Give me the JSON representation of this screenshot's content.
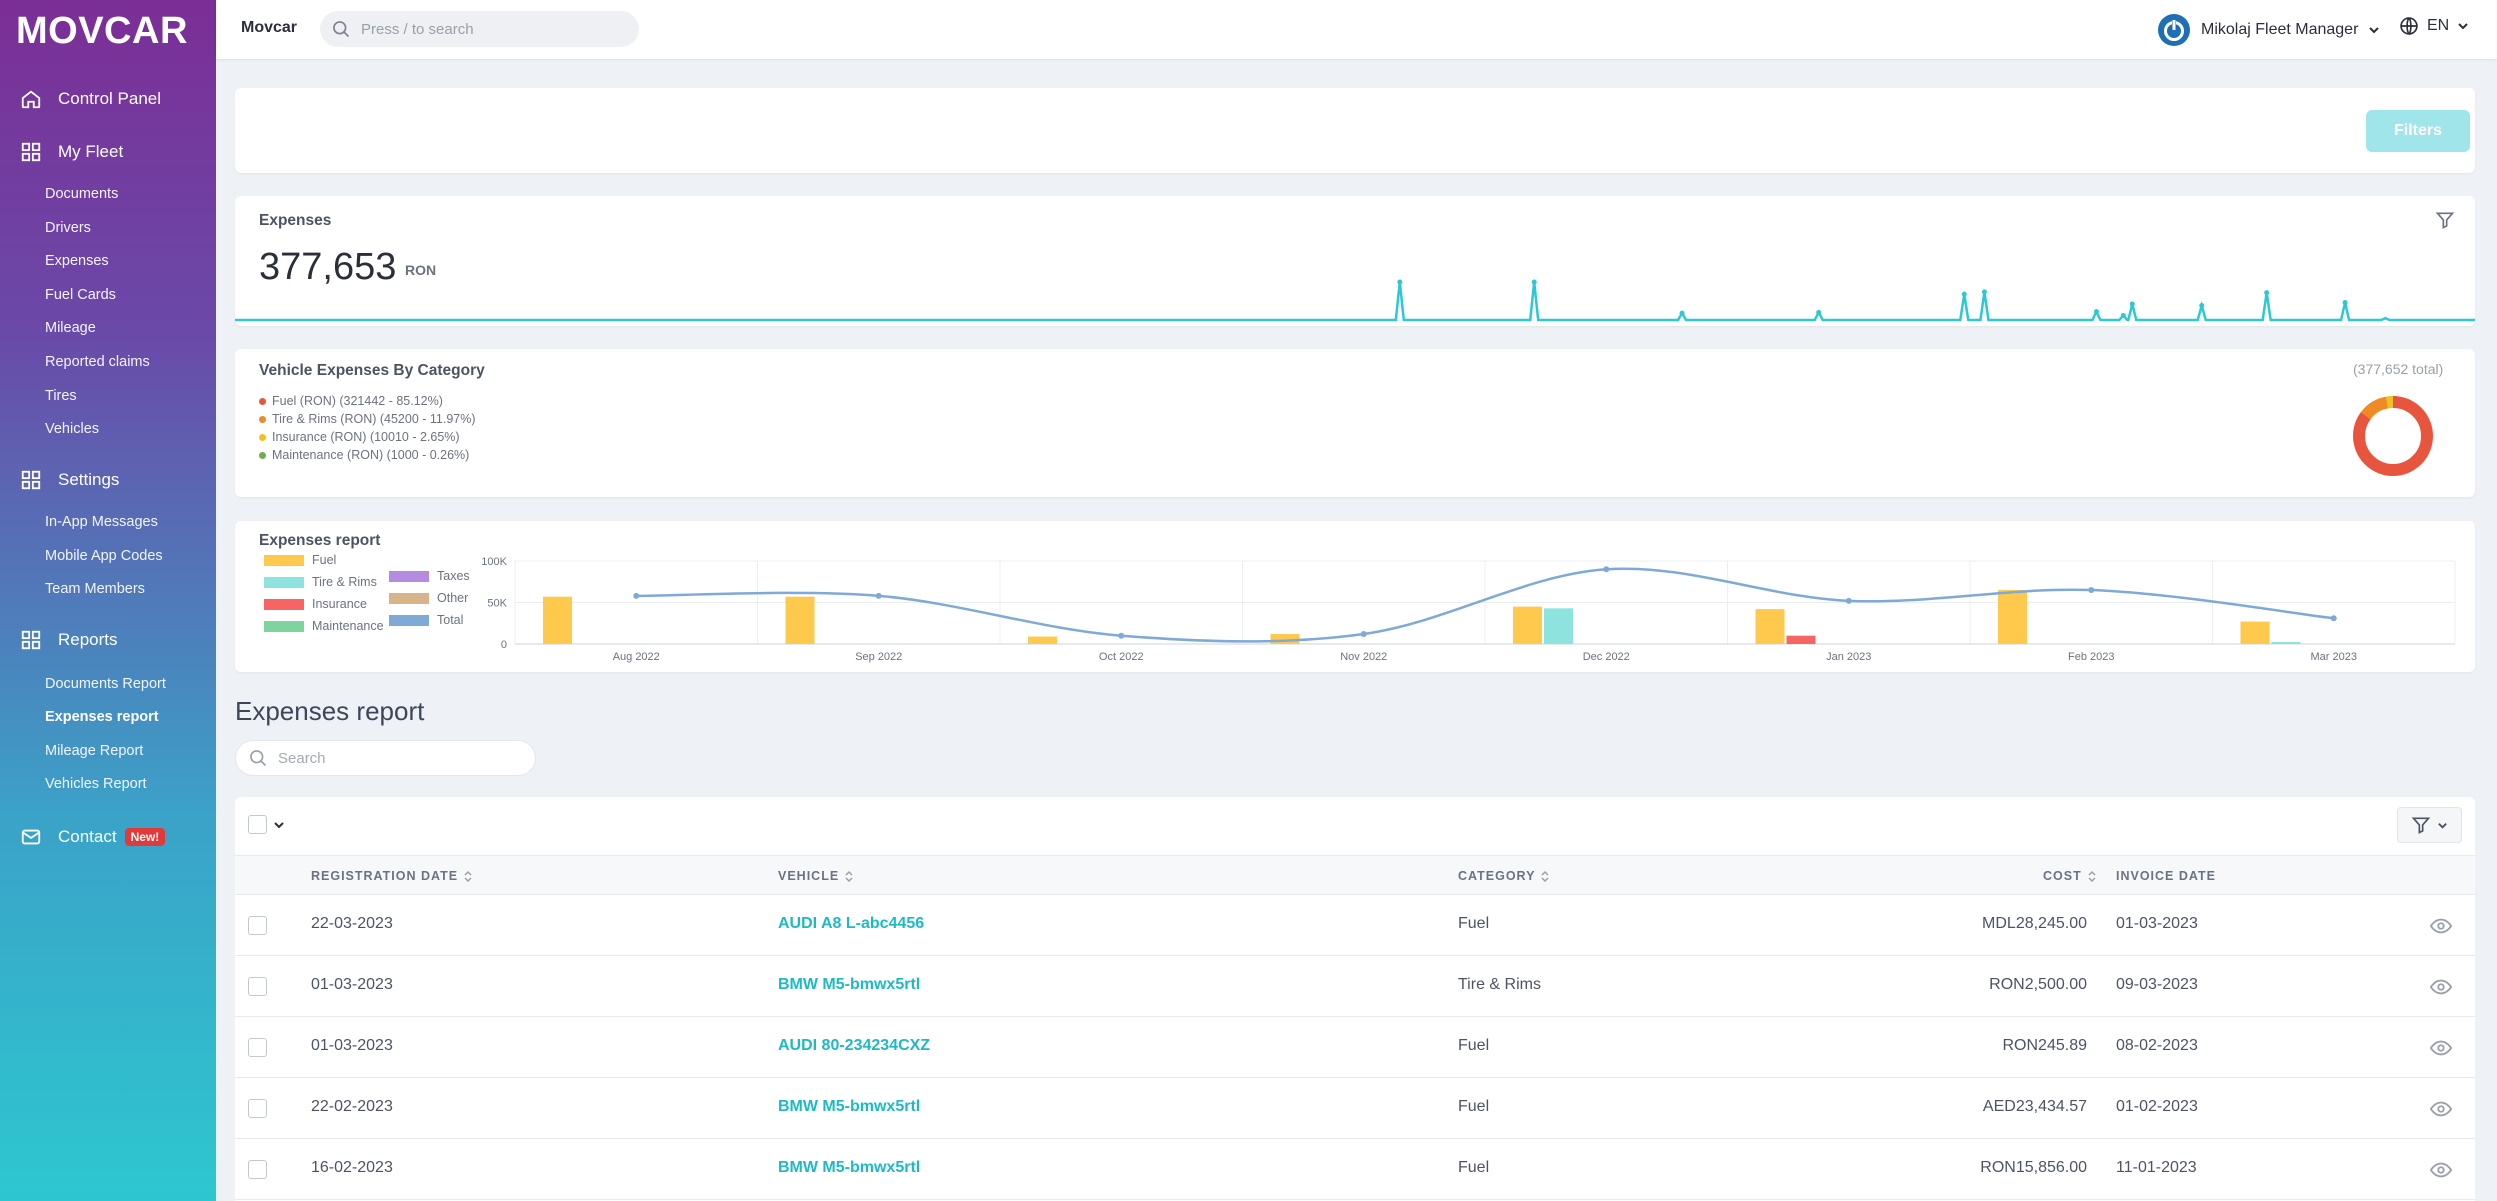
{
  "sidebar": {
    "logo": "MOVCAR",
    "sections": [
      {
        "label": "Control Panel",
        "icon": "home-icon"
      },
      {
        "label": "My Fleet",
        "icon": "grid-icon",
        "items": [
          "Documents",
          "Drivers",
          "Expenses",
          "Fuel Cards",
          "Mileage",
          "Reported claims",
          "Tires",
          "Vehicles"
        ]
      },
      {
        "label": "Settings",
        "icon": "grid-icon",
        "items": [
          "In-App Messages",
          "Mobile App Codes",
          "Team Members"
        ]
      },
      {
        "label": "Reports",
        "icon": "grid-icon",
        "items": [
          "Documents Report",
          "Expenses report",
          "Mileage Report",
          "Vehicles Report"
        ]
      },
      {
        "label": "Contact",
        "icon": "mail-icon",
        "badge": "New!"
      }
    ],
    "active_item": "Expenses report"
  },
  "header": {
    "brand": "Movcar",
    "search_placeholder": "Press / to search",
    "user": "Mikolaj Fleet Manager",
    "language": "EN"
  },
  "filters": {
    "button": "Filters"
  },
  "expenses_card": {
    "title": "Expenses",
    "total": "377,653",
    "currency": "RON"
  },
  "category_card": {
    "title": "Vehicle Expenses By Category",
    "total_note": "(377,652 total)",
    "items": [
      {
        "label": "Fuel (RON) (321442 - 85.12%)",
        "color": "#e8553e",
        "value": 321442
      },
      {
        "label": "Tire & Rims (RON) (45200 - 11.97%)",
        "color": "#f08a24",
        "value": 45200
      },
      {
        "label": "Insurance (RON) (10010 - 2.65%)",
        "color": "#f2c218",
        "value": 10010
      },
      {
        "label": "Maintenance (RON) (1000 - 0.26%)",
        "color": "#6ab04c",
        "value": 1000
      }
    ]
  },
  "report_card": {
    "title": "Expenses report",
    "legend": [
      {
        "label": "Fuel",
        "color": "#ffc94d"
      },
      {
        "label": "Tire & Rims",
        "color": "#8ee3de"
      },
      {
        "label": "Insurance",
        "color": "#f86464"
      },
      {
        "label": "Maintenance",
        "color": "#7fd49e"
      },
      {
        "label": "Taxes",
        "color": "#b58be0"
      },
      {
        "label": "Other",
        "color": "#d9b48a"
      },
      {
        "label": "Total",
        "color": "#7fa9d6"
      }
    ]
  },
  "chart_data": {
    "type": "bar",
    "title": "Expenses report",
    "categories": [
      "Aug 2022",
      "Sep 2022",
      "Oct 2022",
      "Nov 2022",
      "Dec 2022",
      "Jan 2023",
      "Feb 2023",
      "Mar 2023"
    ],
    "y_ticks": [
      "100K",
      "50K",
      "0"
    ],
    "ylim": [
      0,
      100000
    ],
    "series": [
      {
        "name": "Fuel",
        "values": [
          57000,
          57000,
          9000,
          12000,
          45000,
          42000,
          65000,
          27000
        ]
      },
      {
        "name": "Tire & Rims",
        "values": [
          0,
          0,
          0,
          0,
          43000,
          0,
          0,
          2500
        ]
      },
      {
        "name": "Insurance",
        "values": [
          0,
          0,
          0,
          0,
          0,
          10000,
          0,
          0
        ]
      },
      {
        "name": "Maintenance",
        "values": [
          0,
          0,
          0,
          0,
          0,
          0,
          0,
          0
        ]
      },
      {
        "name": "Taxes",
        "values": [
          0,
          0,
          0,
          0,
          0,
          0,
          0,
          0
        ]
      },
      {
        "name": "Other",
        "values": [
          0,
          0,
          0,
          0,
          0,
          0,
          0,
          0
        ]
      },
      {
        "name": "Total",
        "values": [
          58000,
          58000,
          10000,
          12000,
          90000,
          52000,
          65000,
          31000
        ]
      }
    ]
  },
  "sparkline": {
    "color": "#2ec8d4",
    "peaks": [
      {
        "at": 0.52,
        "value": 1.0
      },
      {
        "at": 0.58,
        "value": 1.0
      },
      {
        "at": 0.646,
        "value": 0.18
      },
      {
        "at": 0.707,
        "value": 0.2
      },
      {
        "at": 0.772,
        "value": 0.68
      },
      {
        "at": 0.781,
        "value": 0.74
      },
      {
        "at": 0.831,
        "value": 0.22
      },
      {
        "at": 0.843,
        "value": 0.12
      },
      {
        "at": 0.847,
        "value": 0.42
      },
      {
        "at": 0.878,
        "value": 0.38
      },
      {
        "at": 0.907,
        "value": 0.72
      },
      {
        "at": 0.942,
        "value": 0.46
      },
      {
        "at": 0.96,
        "value": 0.05
      }
    ]
  },
  "list": {
    "heading": "Expenses report",
    "search_placeholder": "Search",
    "columns": [
      "REGISTRATION DATE",
      "VEHICLE",
      "CATEGORY",
      "COST",
      "INVOICE DATE"
    ],
    "rows": [
      {
        "date": "22-03-2023",
        "vehicle": "AUDI A8 L-abc4456",
        "category": "Fuel",
        "cost": "MDL28,245.00",
        "invoice": "01-03-2023"
      },
      {
        "date": "01-03-2023",
        "vehicle": "BMW M5-bmwx5rtl",
        "category": "Tire & Rims",
        "cost": "RON2,500.00",
        "invoice": "09-03-2023"
      },
      {
        "date": "01-03-2023",
        "vehicle": "AUDI 80-234234CXZ",
        "category": "Fuel",
        "cost": "RON245.89",
        "invoice": "08-02-2023"
      },
      {
        "date": "22-02-2023",
        "vehicle": "BMW M5-bmwx5rtl",
        "category": "Fuel",
        "cost": "AED23,434.57",
        "invoice": "01-02-2023"
      },
      {
        "date": "16-02-2023",
        "vehicle": "BMW M5-bmwx5rtl",
        "category": "Fuel",
        "cost": "RON15,856.00",
        "invoice": "11-01-2023"
      }
    ]
  }
}
